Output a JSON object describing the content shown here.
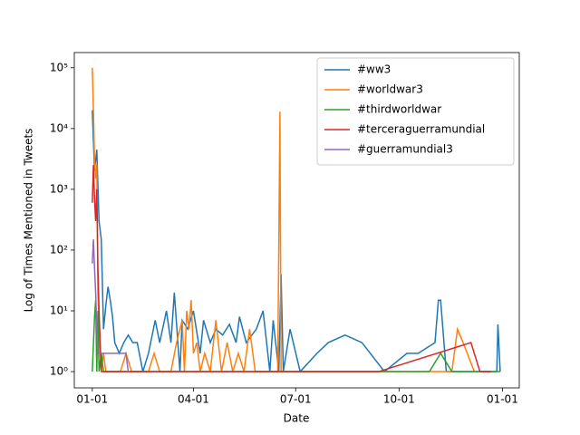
{
  "chart_data": {
    "type": "line",
    "x_label": "Date",
    "y_label": "Log of Times Mentioned in Tweets",
    "y_log": true,
    "legend": "upper right",
    "xlim": [
      -16,
      380
    ],
    "xticks": [
      {
        "value": 0,
        "label": "01-01"
      },
      {
        "value": 90,
        "label": "04-01"
      },
      {
        "value": 181,
        "label": "07-01"
      },
      {
        "value": 273,
        "label": "10-01"
      },
      {
        "value": 365,
        "label": "01-01"
      }
    ],
    "ylim": [
      0.54,
      178000
    ],
    "yticks": [
      {
        "value": 1,
        "label": "10⁰"
      },
      {
        "value": 10,
        "label": "10¹"
      },
      {
        "value": 100,
        "label": "10²"
      },
      {
        "value": 1000,
        "label": "10³"
      },
      {
        "value": 10000,
        "label": "10⁴"
      },
      {
        "value": 100000,
        "label": "10⁵"
      }
    ],
    "series": [
      {
        "name": "#ww3",
        "color": "#1f77b4",
        "x": [
          0,
          2,
          4,
          6,
          8,
          10,
          12,
          14,
          16,
          18,
          20,
          24,
          28,
          32,
          36,
          40,
          45,
          50,
          56,
          60,
          66,
          70,
          73,
          78,
          80,
          85,
          90,
          96,
          99,
          105,
          110,
          116,
          122,
          128,
          131,
          137,
          146,
          152,
          158,
          161,
          166,
          168,
          170,
          176,
          185,
          200,
          210,
          225,
          240,
          260,
          280,
          290,
          305,
          308,
          310,
          315,
          340,
          360,
          361,
          363
        ],
        "values": [
          20000,
          2000,
          4500,
          300,
          150,
          5,
          12,
          25,
          15,
          8,
          3,
          2,
          3,
          4,
          3,
          3,
          1,
          2,
          7,
          3,
          10,
          3,
          20,
          1,
          7,
          5,
          10,
          2,
          7,
          3,
          5,
          4,
          6,
          3,
          8,
          3,
          5,
          10,
          1,
          7,
          1,
          40,
          1,
          5,
          1,
          2,
          3,
          4,
          3,
          1,
          2,
          2,
          3,
          15,
          15,
          1,
          1,
          1,
          6,
          1
        ]
      },
      {
        "name": "#worldwar3",
        "color": "#ff7f0e",
        "x": [
          0,
          1,
          2,
          3,
          4,
          5,
          6,
          8,
          10,
          12,
          15,
          20,
          25,
          30,
          35,
          40,
          45,
          50,
          55,
          60,
          65,
          70,
          75,
          80,
          82,
          84,
          86,
          88,
          90,
          93,
          96,
          100,
          105,
          110,
          115,
          120,
          125,
          130,
          135,
          140,
          145,
          150,
          155,
          160,
          163,
          165,
          167,
          168,
          170,
          180,
          200,
          220,
          240,
          260,
          280,
          300,
          320,
          325,
          330,
          340
        ],
        "values": [
          100000,
          20000,
          3000,
          1500,
          2500,
          20,
          5,
          1,
          2,
          1,
          1,
          1,
          1,
          2,
          1,
          1,
          1,
          1,
          2,
          1,
          1,
          1,
          3,
          7,
          1,
          10,
          5,
          15,
          2,
          3,
          1,
          2,
          1,
          7,
          1,
          3,
          1,
          2,
          1,
          5,
          1,
          1,
          1,
          1,
          1,
          1,
          19000,
          1,
          1,
          1,
          1,
          1,
          1,
          1,
          1,
          1,
          1,
          5,
          3,
          1
        ]
      },
      {
        "name": "#thirdworldwar",
        "color": "#2ca02c",
        "x": [
          0,
          2,
          3,
          4,
          5,
          6,
          8,
          10,
          20,
          40,
          60,
          80,
          100,
          120,
          160,
          200,
          240,
          280,
          300,
          310,
          320,
          340,
          363
        ],
        "values": [
          1,
          8,
          15,
          1,
          10,
          1,
          2,
          1,
          1,
          1,
          1,
          1,
          1,
          1,
          1,
          1,
          1,
          1,
          1,
          2,
          1,
          1,
          1
        ]
      },
      {
        "name": "#terceraguerramundial",
        "color": "#d62728",
        "x": [
          0,
          1,
          2,
          3,
          4,
          5,
          6,
          8,
          20,
          60,
          100,
          140,
          180,
          220,
          255,
          337,
          345,
          355
        ],
        "values": [
          600,
          2500,
          700,
          300,
          1000,
          50,
          10,
          1,
          1,
          1,
          1,
          1,
          1,
          1,
          1,
          3,
          1,
          1
        ]
      },
      {
        "name": "#guerramundial3",
        "color": "#9467bd",
        "x": [
          0,
          1,
          2,
          3,
          4,
          5,
          30,
          32
        ],
        "values": [
          60,
          150,
          50,
          20,
          5,
          2,
          2,
          1
        ]
      }
    ]
  }
}
